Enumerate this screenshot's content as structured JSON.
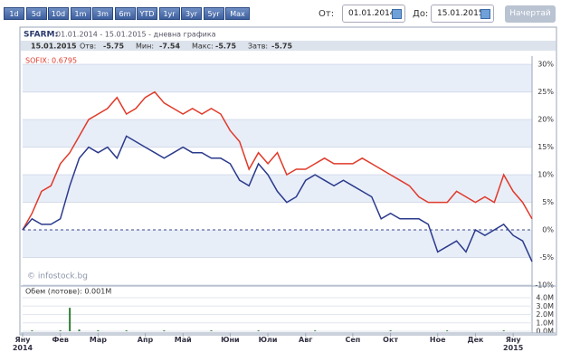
{
  "toolbar": {
    "buttons": [
      "1d",
      "5d",
      "10d",
      "1m",
      "3m",
      "6m",
      "YTD",
      "1yr",
      "3yr",
      "5yr",
      "Max"
    ],
    "from_label": "От:",
    "from_value": "01.01.2014",
    "to_label": "До:",
    "to_value": "15.01.2015",
    "submit": "Начертай"
  },
  "chart_data": {
    "type": "line",
    "title": "SFARM:",
    "subtitle": "01.01.2014 - 15.01.2015 - дневна графика",
    "info_date": "15.01.2015",
    "info": [
      {
        "label": "Отв:",
        "value": "-5.75"
      },
      {
        "label": "Мин:",
        "value": "-7.54"
      },
      {
        "label": "Макс:",
        "value": "-5.75"
      },
      {
        "label": "Затв:",
        "value": "-5.75"
      }
    ],
    "legend_label": "SOFIX: 0.6795",
    "watermark": "© infostock.bg",
    "categories": [
      "Яну 2014",
      null,
      null,
      null,
      "Фев",
      null,
      null,
      null,
      "Мар",
      null,
      null,
      null,
      null,
      "Апр",
      null,
      null,
      null,
      "Май",
      null,
      null,
      null,
      null,
      "Юни",
      null,
      null,
      null,
      "Юли",
      null,
      null,
      null,
      "Авг",
      null,
      null,
      null,
      null,
      "Сеп",
      null,
      null,
      null,
      "Окт",
      null,
      null,
      null,
      null,
      "Ное",
      null,
      null,
      null,
      "Дек",
      null,
      null,
      null,
      "Яну 2015",
      null,
      null
    ],
    "series": [
      {
        "name": "SOFIX",
        "color": "#e03a2a",
        "values": [
          0,
          3,
          7,
          8,
          12,
          14,
          17,
          20,
          21,
          22,
          24,
          21,
          22,
          24,
          25,
          23,
          22,
          21,
          22,
          21,
          22,
          21,
          18,
          16,
          11,
          14,
          12,
          14,
          10,
          11,
          11,
          12,
          13,
          12,
          12,
          12,
          13,
          12,
          11,
          10,
          9,
          8,
          6,
          5,
          5,
          5,
          7,
          6,
          5,
          6,
          5,
          10,
          7,
          5,
          2
        ]
      },
      {
        "name": "SFARM",
        "color": "#2a3a8c",
        "values": [
          0,
          2,
          1,
          1,
          2,
          8,
          13,
          15,
          14,
          15,
          13,
          17,
          16,
          15,
          14,
          13,
          14,
          15,
          14,
          14,
          13,
          13,
          12,
          9,
          8,
          12,
          10,
          7,
          5,
          6,
          9,
          10,
          9,
          8,
          9,
          8,
          7,
          6,
          2,
          3,
          2,
          2,
          2,
          1,
          -4,
          -3,
          -2,
          -4,
          0,
          -1,
          0,
          1,
          -1,
          -2,
          -5.75
        ]
      }
    ],
    "ylim": [
      -10,
      31.5
    ],
    "yticks": [
      {
        "value": -10,
        "label": "-10%"
      },
      {
        "value": -5,
        "label": "-5%"
      },
      {
        "value": 0,
        "label": "0%"
      },
      {
        "value": 5,
        "label": "5%"
      },
      {
        "value": 10,
        "label": "10%"
      },
      {
        "value": 15,
        "label": "15%"
      },
      {
        "value": 20,
        "label": "20%"
      },
      {
        "value": 25,
        "label": "25%"
      },
      {
        "value": 30,
        "label": "30%"
      }
    ],
    "volume": {
      "label": "Обем (лотове): 0.001M",
      "color": "#2e7d32",
      "values": [
        0,
        0.1,
        0,
        0,
        0.1,
        2.8,
        0.2,
        0,
        0.1,
        0,
        0,
        0.1,
        0,
        0,
        0,
        0.1,
        0,
        0,
        0,
        0,
        0.1,
        0,
        0,
        0,
        0,
        0.1,
        0,
        0,
        0,
        0,
        0,
        0.1,
        0,
        0,
        0,
        0,
        0,
        0,
        0,
        0.1,
        0,
        0,
        0,
        0,
        0,
        0.1,
        0,
        0,
        0,
        0,
        0,
        0.1,
        0,
        0,
        0
      ],
      "ylim": [
        0,
        5.3
      ],
      "yticks": [
        {
          "value": 0,
          "label": "0.0M"
        },
        {
          "value": 1,
          "label": "1.0M"
        },
        {
          "value": 2,
          "label": "2.0M"
        },
        {
          "value": 3,
          "label": "3.0M"
        },
        {
          "value": 4,
          "label": "4.0M"
        }
      ]
    }
  }
}
